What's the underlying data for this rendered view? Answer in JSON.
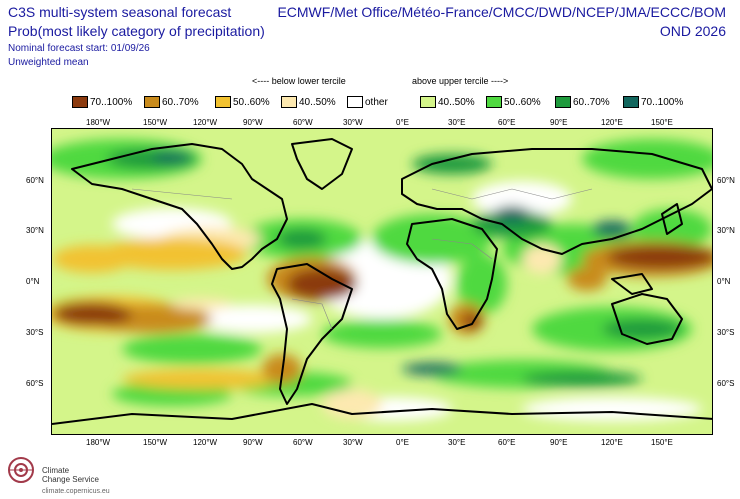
{
  "header": {
    "title": "C3S multi-system seasonal forecast",
    "subtitle": "Prob(most likely category of precipitation)",
    "start": "Nominal forecast start: 01/09/26",
    "mean": "Unweighted mean",
    "systems": "ECMWF/Met Office/Météo-France/CMCC/DWD/NCEP/JMA/ECCC/BOM",
    "season": "OND 2026"
  },
  "legend": {
    "below_label": "<---- below lower tercile",
    "above_label": "above upper tercile ---->",
    "items": [
      {
        "label": "70..100%",
        "color": "#8b3a0e"
      },
      {
        "label": "60..70%",
        "color": "#c98b1c"
      },
      {
        "label": "50..60%",
        "color": "#f2c230"
      },
      {
        "label": "40..50%",
        "color": "#fde9b0"
      },
      {
        "label": "other",
        "color": "#ffffff"
      },
      {
        "label": "40..50%",
        "color": "#d4f58a"
      },
      {
        "label": "50..60%",
        "color": "#4fd940"
      },
      {
        "label": "60..70%",
        "color": "#1e9a3c"
      },
      {
        "label": "70..100%",
        "color": "#12675e"
      }
    ]
  },
  "map": {
    "lon_ticks": [
      "180°W",
      "150°W",
      "120°W",
      "90°W",
      "60°W",
      "30°W",
      "0°E",
      "30°E",
      "60°E",
      "90°E",
      "120°E",
      "150°E"
    ],
    "lat_ticks": [
      "60°N",
      "30°N",
      "0°N",
      "30°S",
      "60°S"
    ]
  },
  "footer": {
    "org_line1": "Climate",
    "org_line2": "Change Service",
    "url": "climate.copernicus.eu"
  }
}
